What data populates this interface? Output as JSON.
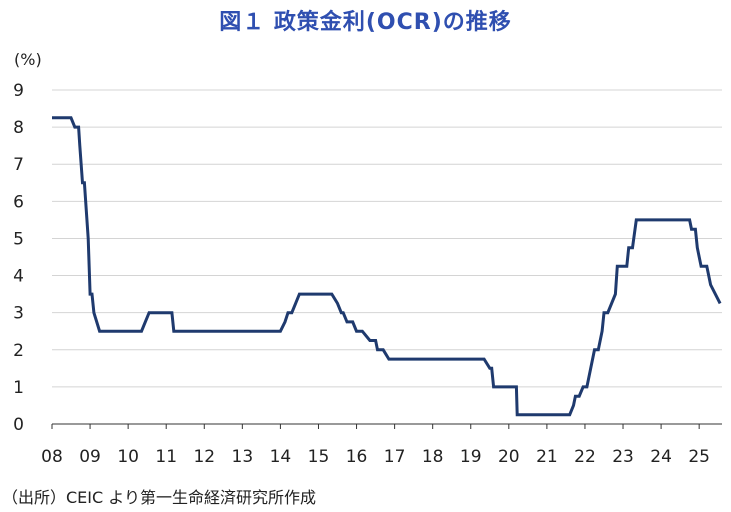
{
  "title": "図１ 政策金利(OCR)の推移",
  "unit_label": "(%)",
  "source": "（出所）CEIC より第一生命経済研究所作成",
  "chart_data": {
    "type": "line",
    "title": "図１ 政策金利(OCR)の推移",
    "ylabel": "(%)",
    "xlabel": "",
    "ylim": [
      0,
      9
    ],
    "yticks": [
      0,
      1,
      2,
      3,
      4,
      5,
      6,
      7,
      8,
      9
    ],
    "xlim": [
      2008,
      2025.6
    ],
    "xtick_labels": [
      "08",
      "09",
      "10",
      "11",
      "12",
      "13",
      "14",
      "15",
      "16",
      "17",
      "18",
      "19",
      "20",
      "21",
      "22",
      "23",
      "24",
      "25"
    ],
    "xtick_years": [
      2008,
      2009,
      2010,
      2011,
      2012,
      2013,
      2014,
      2015,
      2016,
      2017,
      2018,
      2019,
      2020,
      2021,
      2022,
      2023,
      2024,
      2025
    ],
    "grid": "horizontal",
    "line_color": "#1f3a6e",
    "series": [
      {
        "x": [
          2008.0,
          2008.4,
          2008.5,
          2008.6,
          2008.63,
          2008.7,
          2008.73,
          2008.8,
          2008.85,
          2008.95,
          2009.0,
          2009.05,
          2009.1,
          2009.25,
          2009.3,
          2010.35,
          2010.45,
          2010.55,
          2011.0,
          2011.15,
          2011.2,
          2014.0,
          2014.12,
          2014.2,
          2014.3,
          2014.4,
          2014.5,
          2014.6,
          2015.35,
          2015.5,
          2015.6,
          2015.65,
          2015.75,
          2015.85,
          2015.9,
          2016.0,
          2016.15,
          2016.35,
          2016.5,
          2016.55,
          2016.7,
          2016.85,
          2016.9,
          2019.3,
          2019.35,
          2019.5,
          2019.55,
          2019.6,
          2020.1,
          2020.2,
          2020.22,
          2021.6,
          2021.7,
          2021.75,
          2021.85,
          2021.95,
          2022.05,
          2022.15,
          2022.25,
          2022.35,
          2022.45,
          2022.5,
          2022.6,
          2022.8,
          2022.85,
          2023.0,
          2023.1,
          2023.15,
          2023.25,
          2023.35,
          2024.6,
          2024.65,
          2024.75,
          2024.8,
          2024.9,
          2024.95,
          2025.05,
          2025.1,
          2025.2,
          2025.3,
          2025.55
        ],
        "y": [
          8.25,
          8.25,
          8.25,
          8.0,
          8.0,
          8.0,
          7.5,
          6.5,
          6.5,
          5.0,
          3.5,
          3.5,
          3.0,
          2.5,
          2.5,
          2.5,
          2.75,
          3.0,
          3.0,
          3.0,
          2.5,
          2.5,
          2.75,
          3.0,
          3.0,
          3.25,
          3.5,
          3.5,
          3.5,
          3.25,
          3.0,
          3.0,
          2.75,
          2.75,
          2.75,
          2.5,
          2.5,
          2.25,
          2.25,
          2.0,
          2.0,
          1.75,
          1.75,
          1.75,
          1.75,
          1.5,
          1.5,
          1.0,
          1.0,
          1.0,
          0.25,
          0.25,
          0.5,
          0.75,
          0.75,
          1.0,
          1.0,
          1.5,
          2.0,
          2.0,
          2.5,
          3.0,
          3.0,
          3.5,
          4.25,
          4.25,
          4.25,
          4.75,
          4.75,
          5.5,
          5.5,
          5.5,
          5.5,
          5.25,
          5.25,
          4.75,
          4.25,
          4.25,
          4.25,
          3.75,
          3.25
        ]
      }
    ]
  }
}
